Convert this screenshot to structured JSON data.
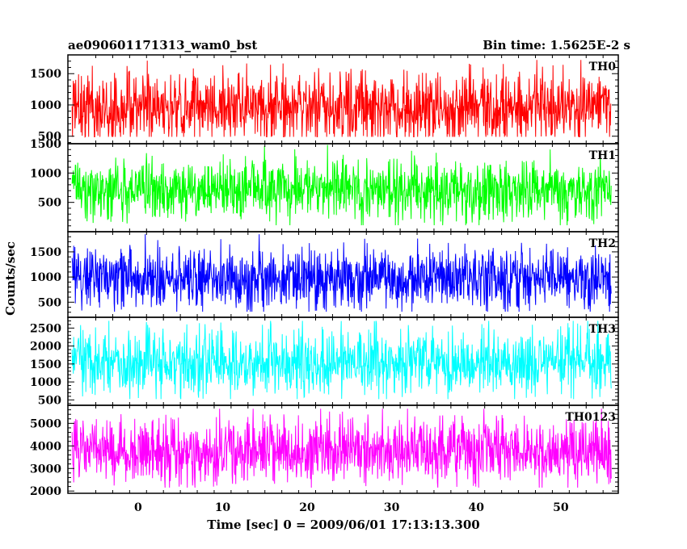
{
  "header": {
    "title": "ae090601171313_wam0_bst",
    "bin_time": "Bin time: 1.5625E-2 s"
  },
  "chart_data": {
    "type": "line",
    "xlabel": "Time [sec] 0 = 2009/06/01 17:13:13.300",
    "ylabel": "Counts/sec",
    "xlim": [
      -8.3,
      56.8
    ],
    "x_range": [
      -7.8,
      56.0
    ],
    "x_ticks": [
      "0",
      "10",
      "20",
      "30",
      "40",
      "50"
    ],
    "x_tick_values": [
      0,
      10,
      20,
      30,
      40,
      50
    ],
    "grid": false,
    "panels": [
      {
        "name": "TH0",
        "color": "#ff0000",
        "ylim": [
          380,
          1800
        ],
        "ticks": [
          500,
          1000,
          1500
        ],
        "tick_labels": [
          "500",
          "1000",
          "1500"
        ],
        "mean": 950,
        "spread": 300,
        "clip": [
          490,
          1720
        ]
      },
      {
        "name": "TH1",
        "color": "#00ff00",
        "ylim": [
          0,
          1500
        ],
        "ticks": [
          500,
          1000,
          1500
        ],
        "tick_labels": [
          "500",
          "1000",
          "1500"
        ],
        "mean": 720,
        "spread": 260,
        "clip": [
          110,
          1480
        ]
      },
      {
        "name": "TH2",
        "color": "#0000ff",
        "ylim": [
          200,
          1900
        ],
        "ticks": [
          500,
          1000,
          1500
        ],
        "tick_labels": [
          "500",
          "1000",
          "1500"
        ],
        "mean": 980,
        "spread": 320,
        "clip": [
          310,
          1850
        ]
      },
      {
        "name": "TH3",
        "color": "#00ffff",
        "ylim": [
          350,
          2800
        ],
        "ticks": [
          500,
          1000,
          1500,
          2000,
          2500
        ],
        "tick_labels": [
          "500",
          "1000",
          "1500",
          "2000",
          "2500"
        ],
        "mean": 1550,
        "spread": 450,
        "clip": [
          520,
          2700
        ]
      },
      {
        "name": "TH0123",
        "color": "#ff00ff",
        "ylim": [
          1900,
          5800
        ],
        "ticks": [
          2000,
          3000,
          4000,
          5000
        ],
        "tick_labels": [
          "2000",
          "3000",
          "4000",
          "5000"
        ],
        "mean": 3800,
        "spread": 750,
        "clip": [
          2150,
          5650
        ]
      }
    ]
  }
}
